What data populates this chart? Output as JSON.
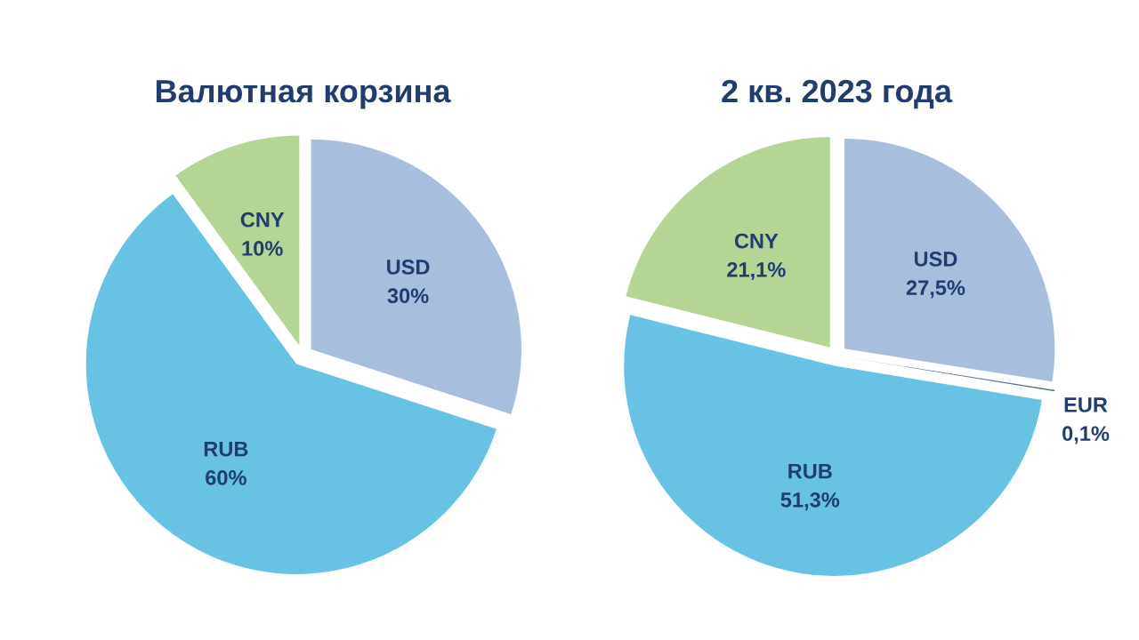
{
  "chart_data": [
    {
      "type": "pie",
      "title": "Валютная корзина",
      "categories": [
        "USD",
        "RUB",
        "CNY"
      ],
      "values": [
        30,
        60,
        10
      ],
      "value_labels": [
        "30%",
        "60%",
        "10%"
      ],
      "colors": [
        "#a8bedd",
        "#67c2e3",
        "#b4d593"
      ],
      "legend": false
    },
    {
      "type": "pie",
      "title": "2 кв. 2023 года",
      "categories": [
        "USD",
        "EUR",
        "RUB",
        "CNY"
      ],
      "values": [
        27.5,
        0.1,
        51.3,
        21.1
      ],
      "value_labels": [
        "27,5%",
        "0,1%",
        "51,3%",
        "21,1%"
      ],
      "colors": [
        "#a8bedd",
        "#4f6f9f",
        "#67c2e3",
        "#b4d593"
      ],
      "legend": false
    }
  ]
}
